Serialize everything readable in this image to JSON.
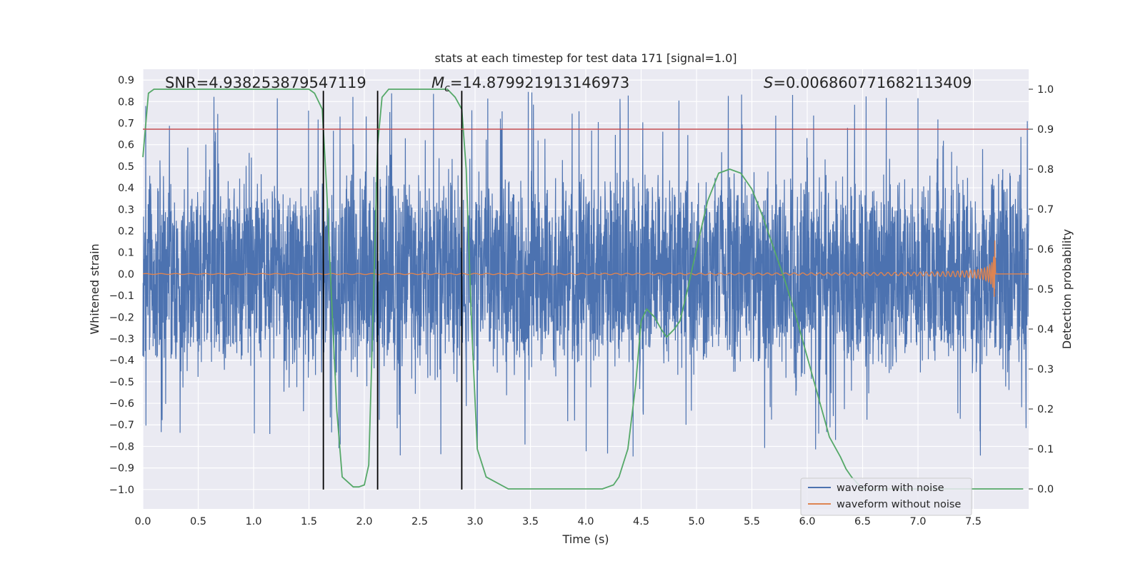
{
  "chart_data": {
    "type": "line",
    "title": "stats at each timestep for test data 171 [signal=1.0]",
    "xlabel": "Time (s)",
    "ylabel": "Whitened strain",
    "y2label": "Detection probability",
    "xlim": [
      0.0,
      8.0
    ],
    "ylim": [
      -1.09,
      0.95
    ],
    "y2lim": [
      -0.05,
      1.05
    ],
    "xticks": [
      0.0,
      0.5,
      1.0,
      1.5,
      2.0,
      2.5,
      3.0,
      3.5,
      4.0,
      4.5,
      5.0,
      5.5,
      6.0,
      6.5,
      7.0,
      7.5
    ],
    "xtick_labels": [
      "0.0",
      "0.5",
      "1.0",
      "1.5",
      "2.0",
      "2.5",
      "3.0",
      "3.5",
      "4.0",
      "4.5",
      "5.0",
      "5.5",
      "6.0",
      "6.5",
      "7.0",
      "7.5"
    ],
    "yticks": [
      0.9,
      0.8,
      0.7,
      0.6,
      0.5,
      0.4,
      0.3,
      0.2,
      0.1,
      0.0,
      -0.1,
      -0.2,
      -0.3,
      -0.4,
      -0.5,
      -0.6,
      -0.7,
      -0.8,
      -0.9,
      -1.0
    ],
    "ytick_labels": [
      "0.9",
      "0.8",
      "0.7",
      "0.6",
      "0.5",
      "0.4",
      "0.3",
      "0.2",
      "0.1",
      "0.0",
      "−0.1",
      "−0.2",
      "−0.3",
      "−0.4",
      "−0.5",
      "−0.6",
      "−0.7",
      "−0.8",
      "−0.9",
      "−1.0"
    ],
    "y2ticks": [
      1.0,
      0.9,
      0.8,
      0.7,
      0.6,
      0.5,
      0.4,
      0.3,
      0.2,
      0.1,
      0.0
    ],
    "y2tick_labels": [
      "1.0",
      "0.9",
      "0.8",
      "0.7",
      "0.6",
      "0.5",
      "0.4",
      "0.3",
      "0.2",
      "0.1",
      "0.0"
    ],
    "grid": true,
    "legend_position": "bottom-right",
    "series": [
      {
        "name": "waveform with noise",
        "axis": "left",
        "color": "#4c72b0",
        "description": "dense noisy whitened strain, roughly within ±0.5 with spikes to about ±0.85",
        "x_range": [
          0.0,
          8.0
        ],
        "typical_amplitude": 0.45,
        "peak_amplitude": 0.85
      },
      {
        "name": "waveform without noise",
        "axis": "left",
        "color": "#dd8452",
        "description": "chirp signal with amplitude growing to merger near t=7.7 s",
        "x_range": [
          0.0,
          8.0
        ],
        "merger_time": 7.7,
        "peak_amplitude": 0.24
      },
      {
        "name": "detection probability",
        "axis": "right",
        "color": "#55a868",
        "x": [
          0.0,
          0.05,
          0.1,
          0.2,
          0.4,
          0.8,
          1.2,
          1.5,
          1.55,
          1.62,
          1.66,
          1.7,
          1.75,
          1.8,
          1.9,
          1.95,
          2.0,
          2.04,
          2.08,
          2.12,
          2.16,
          2.22,
          2.28,
          2.4,
          2.6,
          2.75,
          2.82,
          2.88,
          2.92,
          2.97,
          3.02,
          3.1,
          3.3,
          3.7,
          4.0,
          4.1,
          4.15,
          4.2,
          4.25,
          4.3,
          4.38,
          4.45,
          4.5,
          4.55,
          4.62,
          4.68,
          4.73,
          4.8,
          4.85,
          4.92,
          5.0,
          5.1,
          5.2,
          5.3,
          5.4,
          5.5,
          5.6,
          5.7,
          5.8,
          5.9,
          6.0,
          6.1,
          6.15,
          6.2,
          6.3,
          6.35,
          6.4,
          6.5,
          6.8,
          7.2,
          7.6,
          7.95
        ],
        "values": [
          0.83,
          0.99,
          1.0,
          1.0,
          1.0,
          1.0,
          1.0,
          1.0,
          0.99,
          0.95,
          0.75,
          0.5,
          0.2,
          0.03,
          0.005,
          0.005,
          0.01,
          0.06,
          0.45,
          0.86,
          0.98,
          1.0,
          1.0,
          1.0,
          1.0,
          1.0,
          0.98,
          0.95,
          0.8,
          0.4,
          0.1,
          0.03,
          0.0,
          0.0,
          0.0,
          0.0,
          0.0,
          0.005,
          0.01,
          0.03,
          0.1,
          0.26,
          0.42,
          0.45,
          0.43,
          0.4,
          0.38,
          0.4,
          0.42,
          0.5,
          0.6,
          0.72,
          0.79,
          0.8,
          0.79,
          0.75,
          0.68,
          0.6,
          0.52,
          0.43,
          0.33,
          0.23,
          0.18,
          0.13,
          0.08,
          0.05,
          0.03,
          0.0,
          0.0,
          0.0,
          0.0,
          0.0
        ]
      }
    ],
    "threshold_line": {
      "axis": "right",
      "value": 0.9,
      "color": "#c44e52"
    },
    "vertical_markers": [
      {
        "x": 1.63,
        "y_top": 0.85,
        "y_bottom": -1.0
      },
      {
        "x": 2.12,
        "y_top": 0.85,
        "y_bottom": -1.0
      },
      {
        "x": 2.88,
        "y_top": 0.85,
        "y_bottom": -1.0
      }
    ],
    "annotations": [
      {
        "text": "SNR=4.938253879547119",
        "x": 0.2,
        "y": 0.86
      },
      {
        "prefix": "M",
        "sub": "c",
        "text": "=14.879921913146973",
        "x": 2.6,
        "y": 0.86
      },
      {
        "prefix": "S",
        "text": "=0.006860771682113409",
        "x": 5.6,
        "y": 0.86
      }
    ]
  }
}
